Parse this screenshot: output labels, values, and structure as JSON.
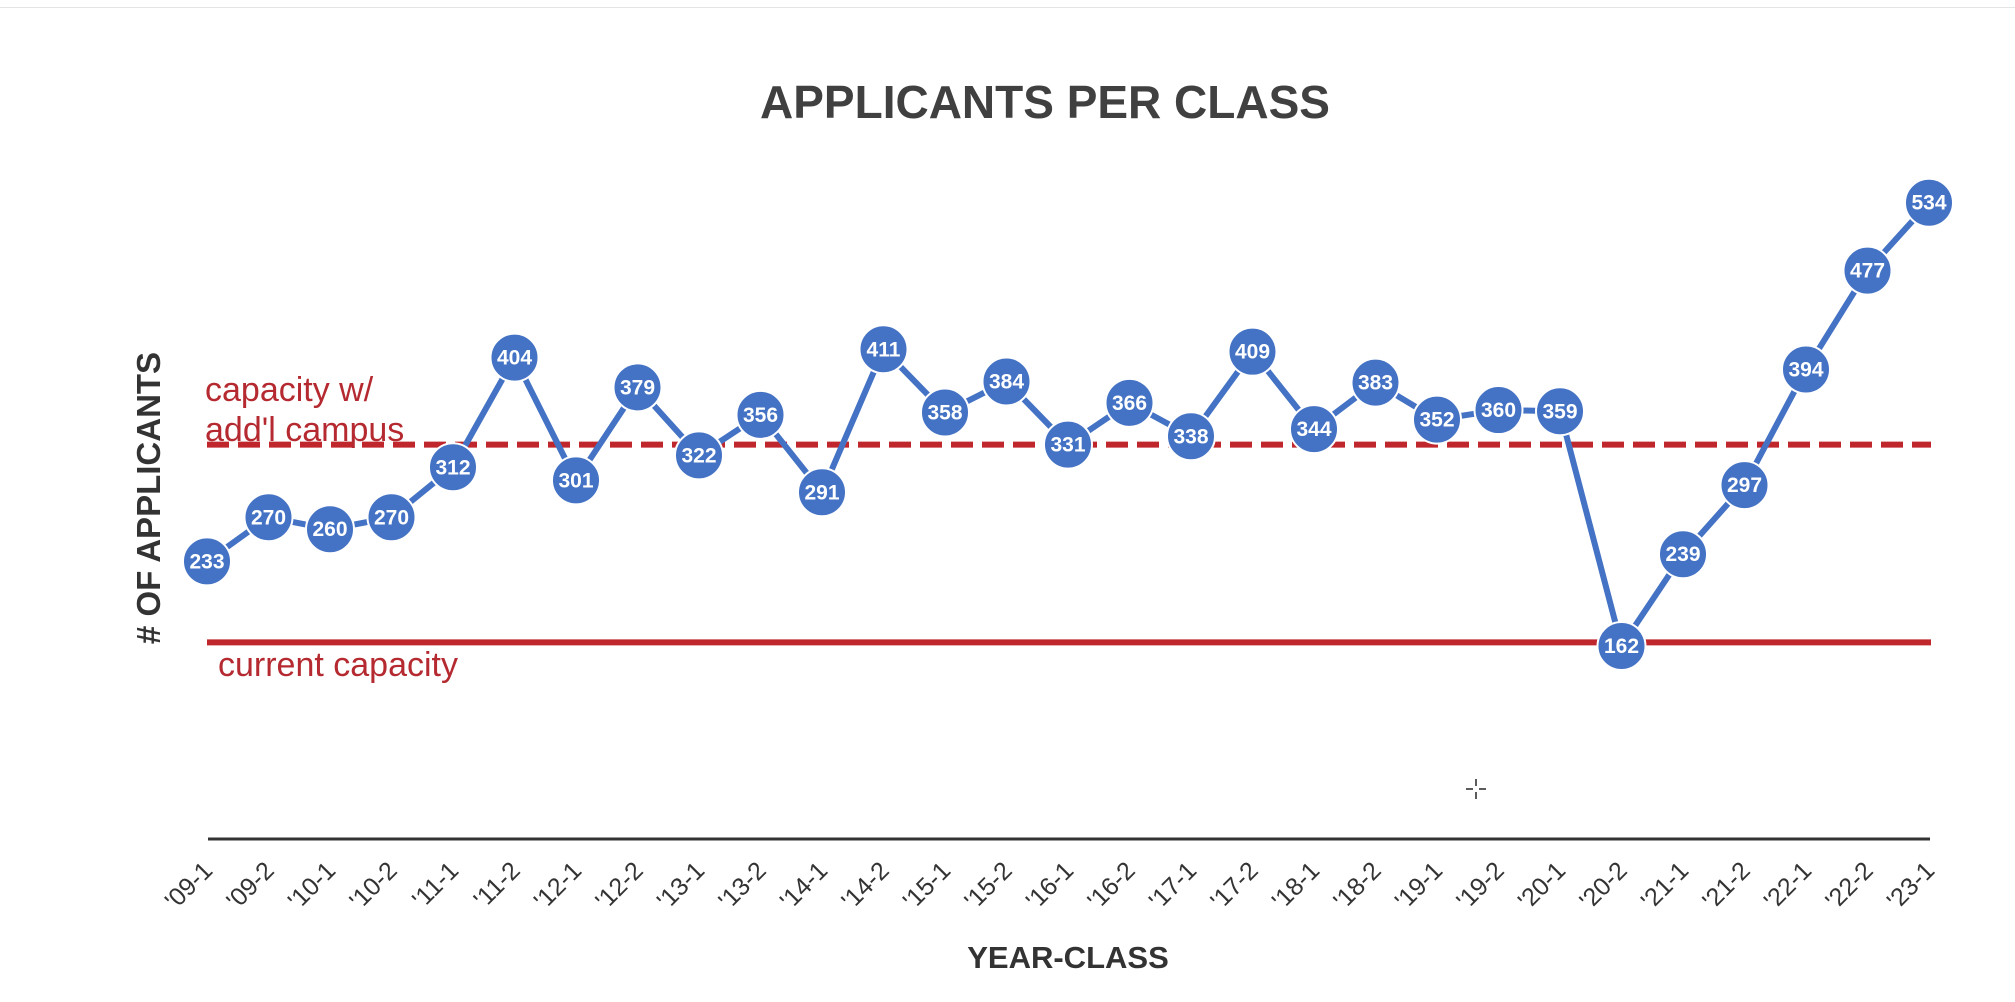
{
  "chart_data": {
    "type": "line",
    "title": "APPLICANTS PER CLASS",
    "xlabel": "YEAR-CLASS",
    "ylabel": "# OF APPLICANTS",
    "categories": [
      "'09-1",
      "'09-2",
      "'10-1",
      "'10-2",
      "'11-1",
      "'11-2",
      "'12-1",
      "'12-2",
      "'13-1",
      "'13-2",
      "'14-1",
      "'14-2",
      "'15-1",
      "'15-2",
      "'16-1",
      "'16-2",
      "'17-1",
      "'17-2",
      "'18-1",
      "'18-2",
      "'19-1",
      "'19-2",
      "'20-1",
      "'20-2",
      "'21-1",
      "'21-2",
      "'22-1",
      "'22-2",
      "'23-1"
    ],
    "series": [
      {
        "values": [
          233,
          270,
          260,
          270,
          312,
          404,
          301,
          379,
          322,
          356,
          291,
          411,
          358,
          384,
          331,
          366,
          338,
          409,
          344,
          383,
          352,
          360,
          359,
          162,
          239,
          297,
          394,
          477,
          534
        ]
      }
    ],
    "reference_lines": [
      {
        "label": "capacity w/ add'l campus",
        "label_line1": "capacity w/",
        "label_line2": "add'l campus",
        "value": 331,
        "style": "dashed"
      },
      {
        "label": "current capacity",
        "value": 165,
        "style": "solid"
      }
    ],
    "ylim": [
      0,
      570
    ],
    "grid": false,
    "legend": "none",
    "colors": {
      "series": "#4472c4",
      "reference": "#c0272d",
      "axis": "#333333",
      "title": "#404040",
      "label": "#b52a30"
    }
  }
}
